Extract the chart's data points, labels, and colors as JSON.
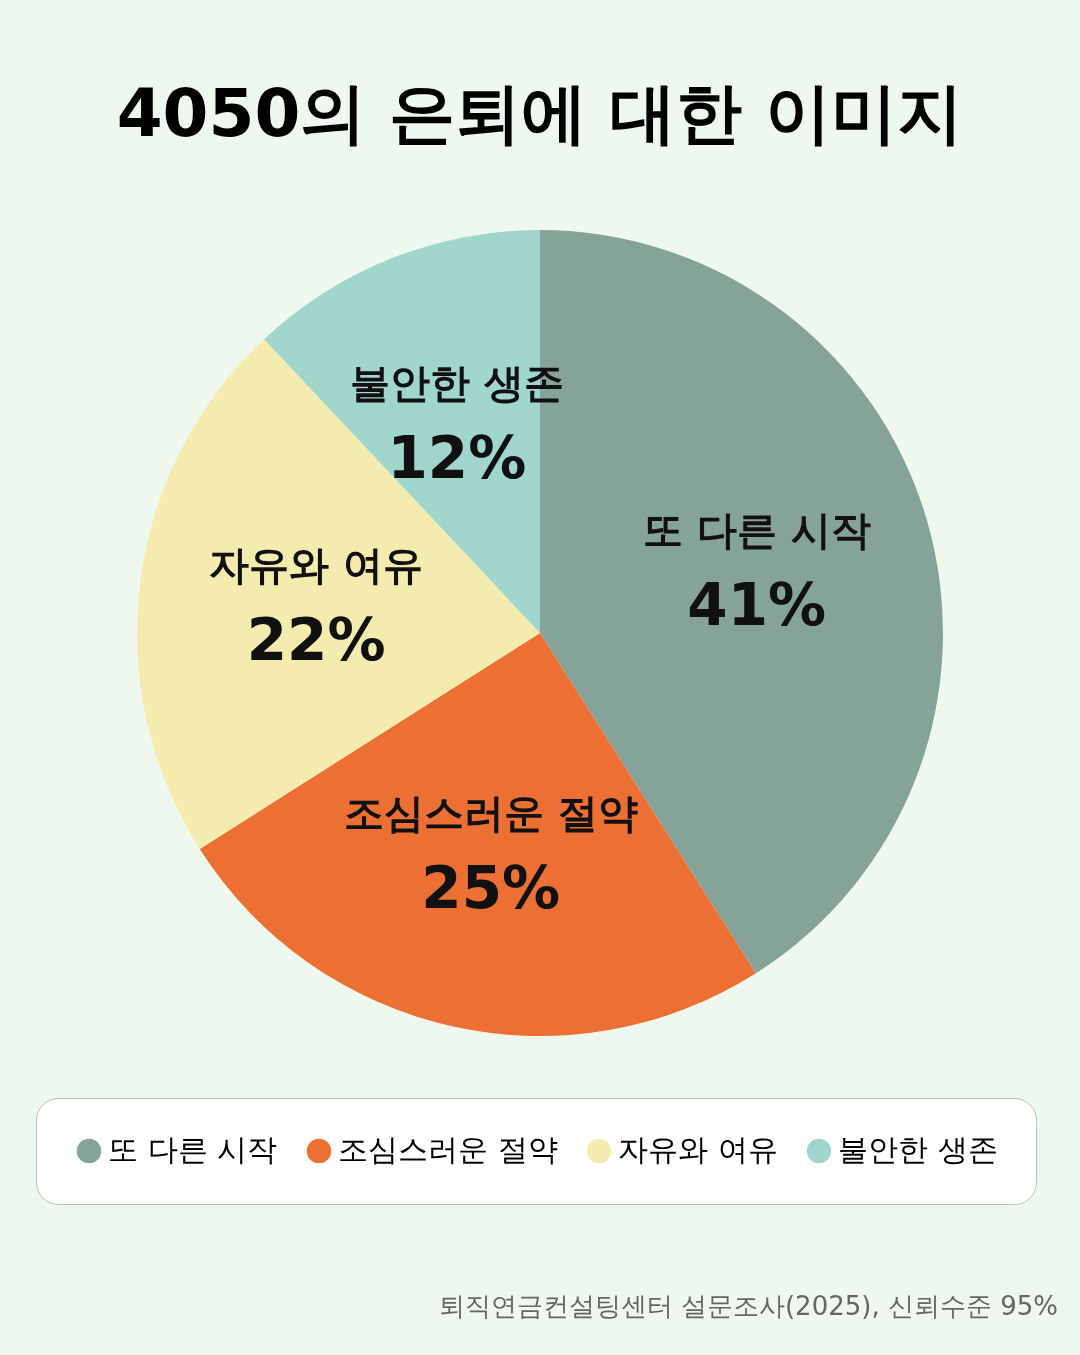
{
  "chart_data": {
    "type": "pie",
    "title": "4050의 은퇴에 대한 이미지",
    "categories": [
      "또 다른 시작",
      "조심스러운 절약",
      "자유와 여유",
      "불안한 생존"
    ],
    "values": [
      41,
      25,
      22,
      12
    ],
    "value_labels": [
      "41%",
      "25%",
      "22%",
      "12%"
    ],
    "colors": [
      "#86a39a",
      "#ec6f33",
      "#f4ecae",
      "#a0d6cc"
    ],
    "legend": "bottom",
    "annotations": [
      "퇴직연금컨설팅센터 설문조사(2025), 신뢰수준 95%"
    ]
  }
}
